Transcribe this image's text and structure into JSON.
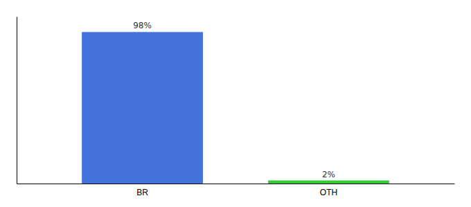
{
  "chart_data": {
    "type": "bar",
    "categories": [
      "BR",
      "OTH"
    ],
    "values": [
      98,
      2
    ],
    "value_labels": [
      "98%",
      "2%"
    ],
    "colors": [
      "#4472db",
      "#33cc33"
    ],
    "ylim": [
      0,
      108
    ],
    "data_labels": true,
    "tick_labels": "x",
    "grid": false
  }
}
